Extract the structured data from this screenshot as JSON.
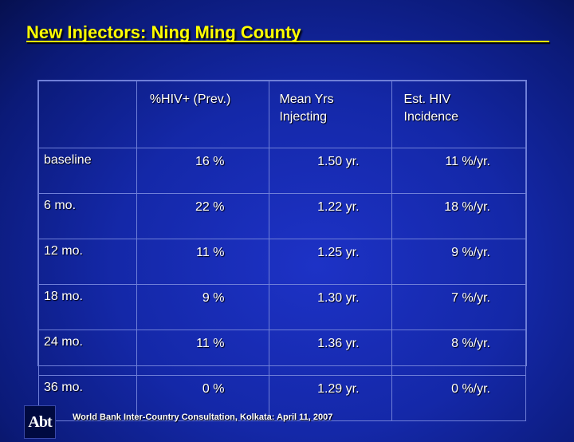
{
  "title": "New Injectors: Ning Ming County",
  "table": {
    "headers": [
      "",
      "%HIV+ (Prev.)",
      "Mean Yrs Injecting",
      "Est. HIV Incidence"
    ],
    "header_lines": {
      "col1": [
        "%HIV+ (Prev.)"
      ],
      "col2": [
        "Mean Yrs",
        "Injecting"
      ],
      "col3": [
        "Est. HIV",
        "Incidence"
      ]
    },
    "rows": [
      {
        "period": "baseline",
        "prev": "16 %",
        "years": "1.50 yr.",
        "incidence": "11 %/yr."
      },
      {
        "period": "6 mo.",
        "prev": "22 %",
        "years": "1.22 yr.",
        "incidence": "18 %/yr."
      },
      {
        "period": "12 mo.",
        "prev": "11 %",
        "years": "1.25 yr.",
        "incidence": "9 %/yr."
      },
      {
        "period": "18 mo.",
        "prev": "9 %",
        "years": "1.30 yr.",
        "incidence": "7 %/yr."
      },
      {
        "period": "24 mo.",
        "prev": "11 %",
        "years": "1.36 yr.",
        "incidence": "8 %/yr."
      },
      {
        "period": "36 mo.",
        "prev": "0 %",
        "years": "1.29 yr.",
        "incidence": "0 %/yr."
      }
    ]
  },
  "logo_text": "Abt",
  "footer": "World Bank Inter-Country Consultation, Kolkata: April 11, 2007"
}
